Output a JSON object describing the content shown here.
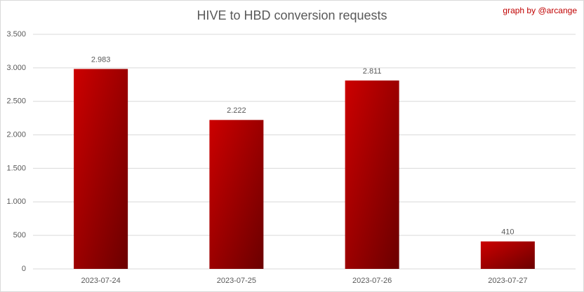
{
  "chart_data": {
    "type": "bar",
    "title": "HIVE to HBD conversion requests",
    "annotation": "graph by @arcange",
    "categories": [
      "2023-07-24",
      "2023-07-25",
      "2023-07-26",
      "2023-07-27"
    ],
    "values": [
      2983,
      2222,
      2811,
      410
    ],
    "value_labels": [
      "2.983",
      "2.222",
      "2.811",
      "410"
    ],
    "color": "#cc0000",
    "ylim": [
      0,
      3500
    ],
    "yticks": [
      0,
      500,
      {
        "value": 1000,
        "label": "1.000"
      },
      {
        "value": 1500,
        "label": "1.500"
      },
      {
        "value": 2000,
        "label": "2.000"
      },
      {
        "value": 2500,
        "label": "2.500"
      },
      {
        "value": 3000,
        "label": "3.000"
      },
      {
        "value": 3500,
        "label": "3.500"
      }
    ],
    "grid": true
  }
}
